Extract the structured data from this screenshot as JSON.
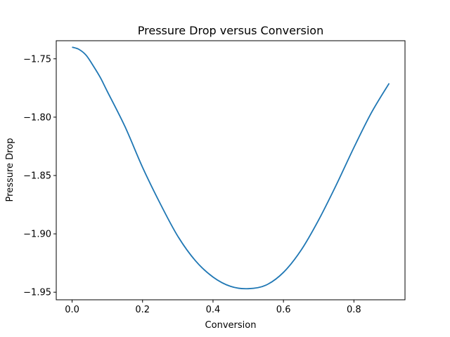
{
  "chart_data": {
    "type": "line",
    "title": "Pressure Drop versus Conversion",
    "xlabel": "Conversion",
    "ylabel": "Pressure Drop",
    "xlim": [
      -0.045,
      0.945
    ],
    "ylim": [
      -1.9565,
      -1.7345
    ],
    "xticks": [
      0.0,
      0.2,
      0.4,
      0.6,
      0.8
    ],
    "xtick_labels": [
      "0.0",
      "0.2",
      "0.4",
      "0.6",
      "0.8"
    ],
    "yticks": [
      -1.75,
      -1.8,
      -1.85,
      -1.9,
      -1.95
    ],
    "ytick_labels": [
      "−1.75",
      "−1.80",
      "−1.85",
      "−1.90",
      "−1.95"
    ],
    "grid": false,
    "series": [
      {
        "color": "#1f77b4",
        "x": [
          0.0,
          0.02,
          0.04,
          0.06,
          0.08,
          0.1,
          0.15,
          0.2,
          0.25,
          0.3,
          0.35,
          0.4,
          0.45,
          0.5,
          0.55,
          0.6,
          0.65,
          0.7,
          0.75,
          0.8,
          0.85,
          0.9
        ],
        "y": [
          -1.74,
          -1.742,
          -1.747,
          -1.756,
          -1.766,
          -1.778,
          -1.808,
          -1.843,
          -1.874,
          -1.902,
          -1.923,
          -1.937,
          -1.945,
          -1.947,
          -1.944,
          -1.933,
          -1.914,
          -1.888,
          -1.858,
          -1.826,
          -1.796,
          -1.771
        ]
      }
    ]
  }
}
